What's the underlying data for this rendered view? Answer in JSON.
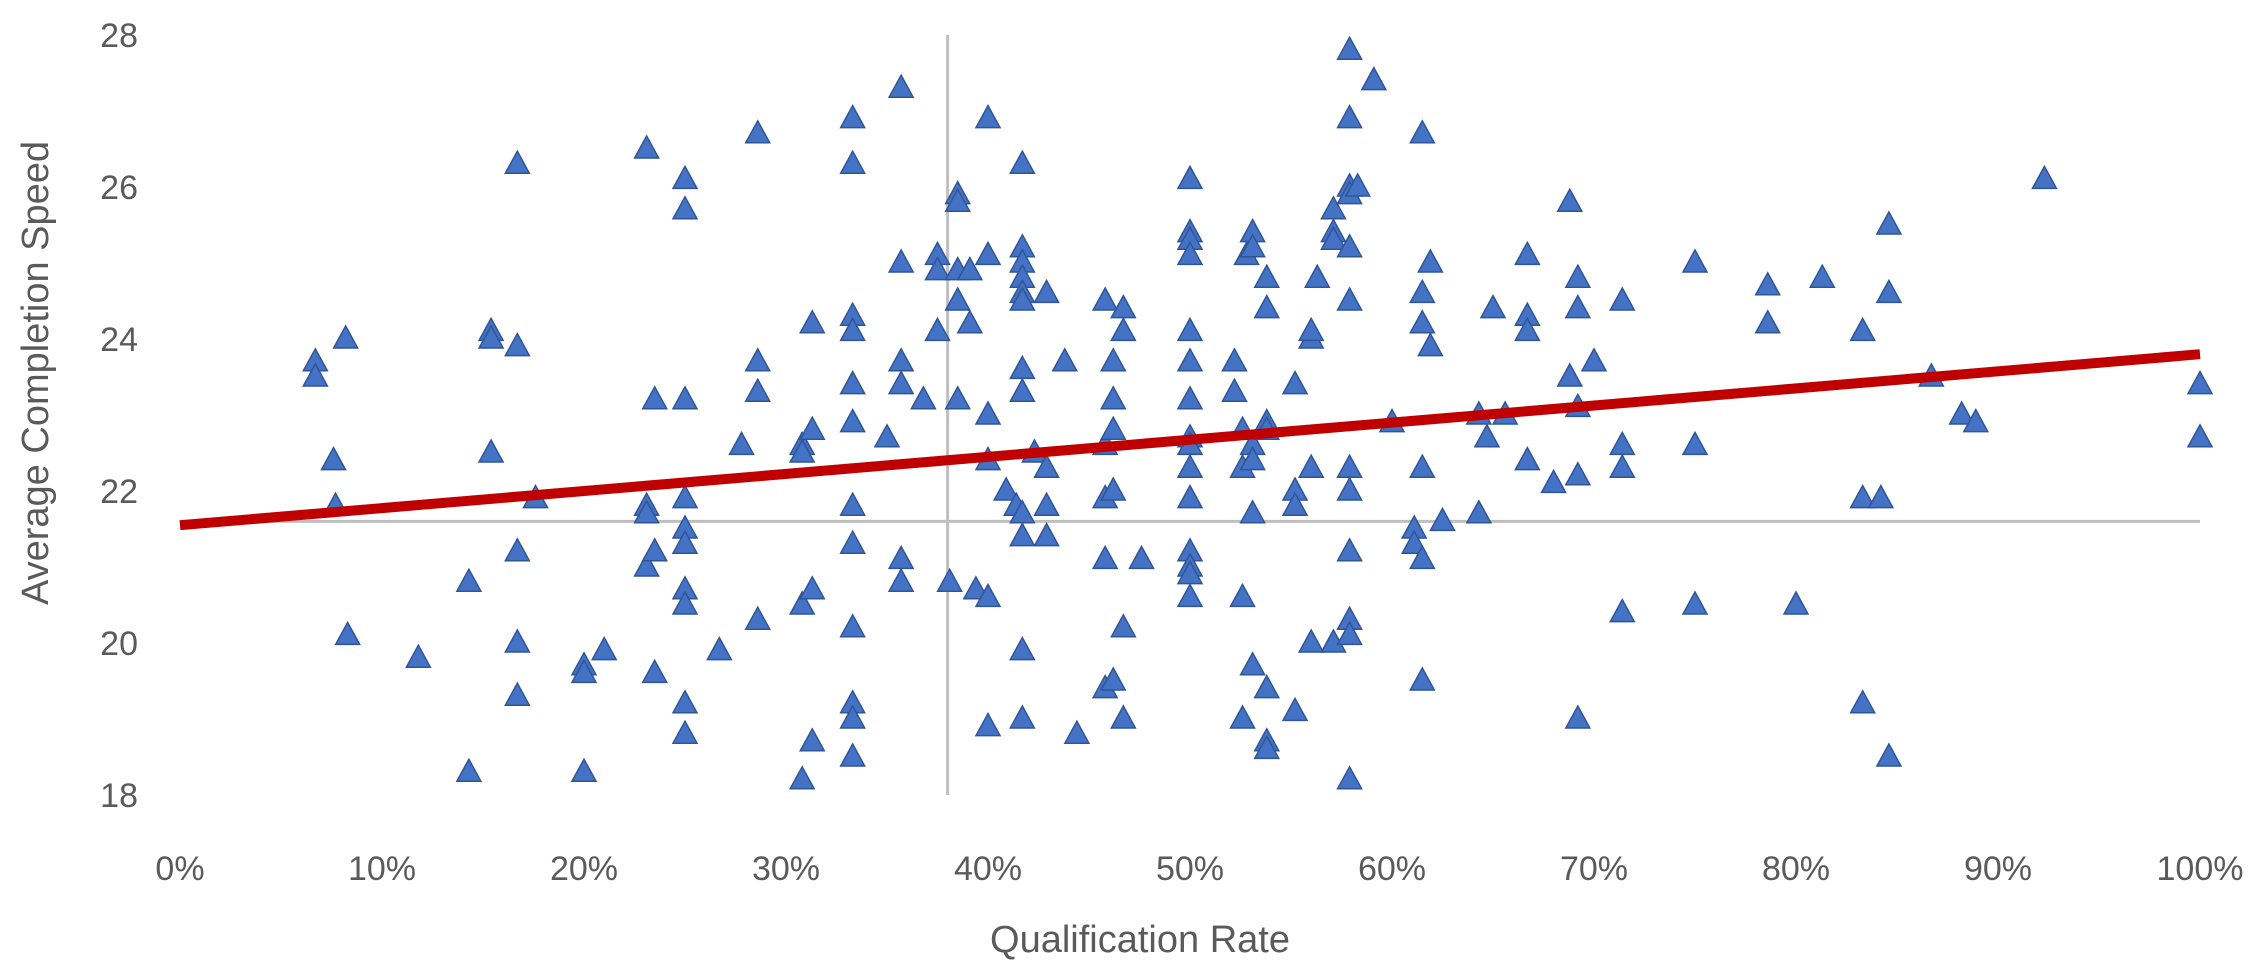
{
  "chart_data": {
    "type": "scatter",
    "title": "",
    "xlabel": "Qualification Rate",
    "ylabel": "Average Completion Speed",
    "xlim": [
      0,
      1
    ],
    "ylim": [
      18,
      28
    ],
    "x_format": "percent",
    "x_ticks": [
      "0%",
      "10%",
      "20%",
      "30%",
      "40%",
      "50%",
      "60%",
      "70%",
      "80%",
      "90%",
      "100%"
    ],
    "y_ticks": [
      "18",
      "20",
      "22",
      "24",
      "26",
      "28"
    ],
    "grid": false,
    "reference_lines": {
      "x": 0.38,
      "y": 21.6
    },
    "colors": {
      "markers": "#4472C4",
      "marker_edge": "#2F5597",
      "trendline": "#C00000",
      "reference_lines": "#BFBFBF",
      "text": "#595959"
    },
    "marker": "triangle",
    "trendline": {
      "type": "linear",
      "x": [
        0,
        1
      ],
      "y": [
        21.55,
        23.8
      ]
    },
    "points": [
      [
        0.067,
        23.7
      ],
      [
        0.067,
        23.5
      ],
      [
        0.076,
        22.4
      ],
      [
        0.077,
        21.8
      ],
      [
        0.082,
        24.0
      ],
      [
        0.083,
        20.1
      ],
      [
        0.118,
        19.8
      ],
      [
        0.143,
        20.8
      ],
      [
        0.143,
        18.3
      ],
      [
        0.154,
        24.1
      ],
      [
        0.154,
        24.0
      ],
      [
        0.154,
        22.5
      ],
      [
        0.167,
        26.3
      ],
      [
        0.167,
        23.9
      ],
      [
        0.167,
        21.2
      ],
      [
        0.167,
        20.0
      ],
      [
        0.167,
        19.3
      ],
      [
        0.176,
        21.9
      ],
      [
        0.2,
        19.7
      ],
      [
        0.2,
        19.6
      ],
      [
        0.2,
        18.3
      ],
      [
        0.21,
        19.9
      ],
      [
        0.231,
        26.5
      ],
      [
        0.231,
        21.8
      ],
      [
        0.231,
        21.7
      ],
      [
        0.231,
        21.0
      ],
      [
        0.235,
        23.2
      ],
      [
        0.235,
        21.2
      ],
      [
        0.235,
        19.6
      ],
      [
        0.25,
        26.1
      ],
      [
        0.25,
        25.7
      ],
      [
        0.25,
        23.2
      ],
      [
        0.25,
        21.9
      ],
      [
        0.25,
        21.5
      ],
      [
        0.25,
        21.3
      ],
      [
        0.25,
        20.7
      ],
      [
        0.25,
        20.5
      ],
      [
        0.25,
        19.2
      ],
      [
        0.25,
        18.8
      ],
      [
        0.267,
        19.9
      ],
      [
        0.278,
        22.6
      ],
      [
        0.286,
        26.7
      ],
      [
        0.286,
        23.7
      ],
      [
        0.286,
        23.3
      ],
      [
        0.286,
        20.3
      ],
      [
        0.308,
        22.6
      ],
      [
        0.308,
        22.5
      ],
      [
        0.308,
        20.5
      ],
      [
        0.308,
        18.2
      ],
      [
        0.313,
        24.2
      ],
      [
        0.313,
        22.8
      ],
      [
        0.313,
        20.7
      ],
      [
        0.313,
        18.7
      ],
      [
        0.333,
        26.9
      ],
      [
        0.333,
        26.3
      ],
      [
        0.333,
        24.3
      ],
      [
        0.333,
        24.1
      ],
      [
        0.333,
        23.4
      ],
      [
        0.333,
        22.9
      ],
      [
        0.333,
        21.8
      ],
      [
        0.333,
        21.3
      ],
      [
        0.333,
        20.2
      ],
      [
        0.333,
        19.2
      ],
      [
        0.333,
        19.0
      ],
      [
        0.333,
        18.5
      ],
      [
        0.35,
        22.7
      ],
      [
        0.357,
        27.3
      ],
      [
        0.357,
        25.0
      ],
      [
        0.357,
        23.7
      ],
      [
        0.357,
        23.4
      ],
      [
        0.357,
        21.1
      ],
      [
        0.357,
        20.8
      ],
      [
        0.368,
        23.2
      ],
      [
        0.375,
        25.1
      ],
      [
        0.375,
        24.9
      ],
      [
        0.375,
        24.1
      ],
      [
        0.381,
        20.8
      ],
      [
        0.385,
        25.9
      ],
      [
        0.385,
        25.8
      ],
      [
        0.385,
        24.9
      ],
      [
        0.385,
        24.5
      ],
      [
        0.385,
        23.2
      ],
      [
        0.391,
        24.9
      ],
      [
        0.391,
        24.2
      ],
      [
        0.394,
        20.7
      ],
      [
        0.4,
        26.9
      ],
      [
        0.4,
        25.1
      ],
      [
        0.4,
        23.0
      ],
      [
        0.4,
        22.4
      ],
      [
        0.4,
        20.6
      ],
      [
        0.4,
        18.9
      ],
      [
        0.409,
        22.0
      ],
      [
        0.414,
        21.8
      ],
      [
        0.417,
        26.3
      ],
      [
        0.417,
        25.2
      ],
      [
        0.417,
        25.0
      ],
      [
        0.417,
        24.8
      ],
      [
        0.417,
        24.6
      ],
      [
        0.417,
        24.5
      ],
      [
        0.417,
        23.6
      ],
      [
        0.417,
        23.3
      ],
      [
        0.417,
        21.7
      ],
      [
        0.417,
        21.4
      ],
      [
        0.417,
        19.9
      ],
      [
        0.417,
        19.0
      ],
      [
        0.423,
        22.5
      ],
      [
        0.429,
        24.6
      ],
      [
        0.429,
        22.3
      ],
      [
        0.429,
        21.8
      ],
      [
        0.429,
        21.4
      ],
      [
        0.438,
        23.7
      ],
      [
        0.444,
        18.8
      ],
      [
        0.458,
        24.5
      ],
      [
        0.458,
        22.6
      ],
      [
        0.458,
        21.9
      ],
      [
        0.458,
        21.1
      ],
      [
        0.458,
        19.4
      ],
      [
        0.462,
        23.7
      ],
      [
        0.462,
        23.2
      ],
      [
        0.462,
        22.8
      ],
      [
        0.462,
        22.0
      ],
      [
        0.462,
        19.5
      ],
      [
        0.467,
        24.4
      ],
      [
        0.467,
        24.1
      ],
      [
        0.467,
        20.2
      ],
      [
        0.467,
        19.0
      ],
      [
        0.476,
        21.1
      ],
      [
        0.5,
        26.1
      ],
      [
        0.5,
        25.4
      ],
      [
        0.5,
        25.3
      ],
      [
        0.5,
        25.1
      ],
      [
        0.5,
        24.1
      ],
      [
        0.5,
        23.7
      ],
      [
        0.5,
        23.2
      ],
      [
        0.5,
        22.7
      ],
      [
        0.5,
        22.6
      ],
      [
        0.5,
        22.3
      ],
      [
        0.5,
        21.9
      ],
      [
        0.5,
        21.2
      ],
      [
        0.5,
        21.0
      ],
      [
        0.5,
        20.9
      ],
      [
        0.5,
        20.6
      ],
      [
        0.522,
        23.7
      ],
      [
        0.522,
        23.3
      ],
      [
        0.526,
        22.8
      ],
      [
        0.526,
        22.3
      ],
      [
        0.526,
        20.6
      ],
      [
        0.526,
        19.0
      ],
      [
        0.528,
        25.1
      ],
      [
        0.531,
        25.4
      ],
      [
        0.531,
        25.2
      ],
      [
        0.531,
        22.6
      ],
      [
        0.531,
        22.4
      ],
      [
        0.531,
        21.7
      ],
      [
        0.531,
        19.7
      ],
      [
        0.538,
        24.8
      ],
      [
        0.538,
        24.4
      ],
      [
        0.538,
        22.9
      ],
      [
        0.538,
        22.8
      ],
      [
        0.538,
        18.7
      ],
      [
        0.538,
        19.4
      ],
      [
        0.538,
        18.6
      ],
      [
        0.552,
        23.4
      ],
      [
        0.552,
        22.0
      ],
      [
        0.552,
        21.8
      ],
      [
        0.552,
        19.1
      ],
      [
        0.56,
        24.0
      ],
      [
        0.56,
        24.1
      ],
      [
        0.56,
        22.3
      ],
      [
        0.56,
        20.0
      ],
      [
        0.563,
        24.8
      ],
      [
        0.571,
        25.7
      ],
      [
        0.571,
        25.4
      ],
      [
        0.571,
        25.3
      ],
      [
        0.571,
        20.0
      ],
      [
        0.579,
        27.8
      ],
      [
        0.579,
        26.9
      ],
      [
        0.579,
        26.0
      ],
      [
        0.579,
        25.9
      ],
      [
        0.579,
        25.2
      ],
      [
        0.579,
        24.5
      ],
      [
        0.579,
        22.3
      ],
      [
        0.579,
        22.0
      ],
      [
        0.579,
        21.2
      ],
      [
        0.579,
        20.3
      ],
      [
        0.579,
        20.1
      ],
      [
        0.579,
        18.2
      ],
      [
        0.583,
        26.0
      ],
      [
        0.591,
        27.4
      ],
      [
        0.6,
        22.9
      ],
      [
        0.611,
        21.5
      ],
      [
        0.611,
        21.3
      ],
      [
        0.615,
        26.7
      ],
      [
        0.615,
        24.6
      ],
      [
        0.615,
        24.2
      ],
      [
        0.615,
        22.3
      ],
      [
        0.615,
        21.1
      ],
      [
        0.615,
        19.5
      ],
      [
        0.619,
        25.0
      ],
      [
        0.619,
        23.9
      ],
      [
        0.625,
        21.6
      ],
      [
        0.643,
        23.0
      ],
      [
        0.643,
        21.7
      ],
      [
        0.647,
        22.7
      ],
      [
        0.65,
        24.4
      ],
      [
        0.656,
        23.0
      ],
      [
        0.667,
        25.1
      ],
      [
        0.667,
        24.3
      ],
      [
        0.667,
        24.1
      ],
      [
        0.667,
        22.4
      ],
      [
        0.68,
        22.1
      ],
      [
        0.688,
        25.8
      ],
      [
        0.688,
        23.5
      ],
      [
        0.692,
        24.8
      ],
      [
        0.692,
        24.4
      ],
      [
        0.692,
        23.1
      ],
      [
        0.692,
        22.2
      ],
      [
        0.692,
        19.0
      ],
      [
        0.7,
        23.7
      ],
      [
        0.714,
        24.5
      ],
      [
        0.714,
        22.6
      ],
      [
        0.714,
        22.3
      ],
      [
        0.714,
        20.4
      ],
      [
        0.75,
        25.0
      ],
      [
        0.75,
        22.6
      ],
      [
        0.75,
        20.5
      ],
      [
        0.786,
        24.7
      ],
      [
        0.786,
        24.2
      ],
      [
        0.8,
        20.5
      ],
      [
        0.813,
        24.8
      ],
      [
        0.833,
        24.1
      ],
      [
        0.833,
        21.9
      ],
      [
        0.833,
        19.2
      ],
      [
        0.842,
        21.9
      ],
      [
        0.846,
        25.5
      ],
      [
        0.846,
        24.6
      ],
      [
        0.846,
        18.5
      ],
      [
        0.867,
        23.5
      ],
      [
        0.882,
        23.0
      ],
      [
        0.889,
        22.9
      ],
      [
        0.923,
        26.1
      ],
      [
        1.0,
        23.4
      ],
      [
        1.0,
        22.7
      ]
    ]
  }
}
